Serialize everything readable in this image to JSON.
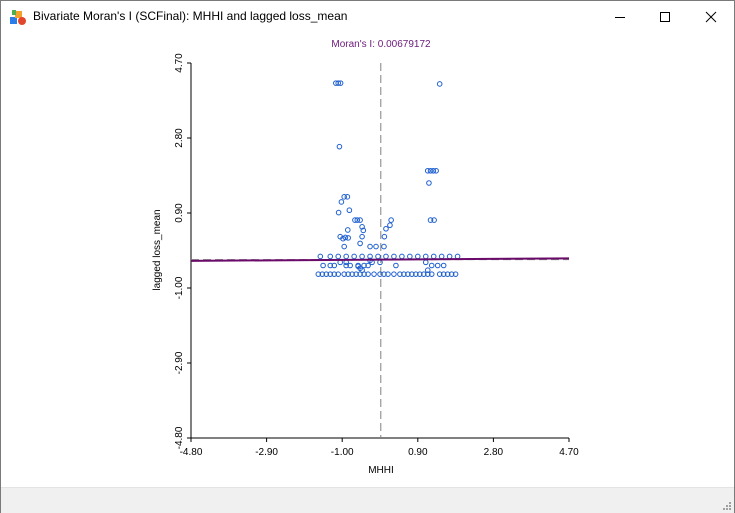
{
  "window": {
    "title": "Bivariate Moran's I (SCFinal): MHHI and lagged loss_mean",
    "icon": "geoda-app-icon",
    "controls": [
      "minimize-icon",
      "maximize-icon",
      "close-icon"
    ]
  },
  "chart_data": {
    "type": "scatter",
    "title": "Moran's I: 0.00679172",
    "xlabel": "MHHI",
    "ylabel": "lagged loss_mean",
    "xlim": [
      -4.8,
      4.7
    ],
    "ylim": [
      -4.8,
      4.7
    ],
    "xticks": [
      "-4.80",
      "-2.90",
      "-1.00",
      "0.90",
      "2.80",
      "4.70"
    ],
    "yticks": [
      "-4.80",
      "-2.90",
      "-1.00",
      "0.90",
      "2.80",
      "4.70"
    ],
    "grid": false,
    "colors": {
      "points": "#1e5fd0",
      "regression": "#6a0a6a",
      "axis_ref": "#808080",
      "title": "#6a1a7a"
    },
    "regression": {
      "slope": 0.00679172,
      "intercept": -0.28
    },
    "reference_lines": {
      "x": -0.03,
      "y": -0.28
    },
    "points": [
      [
        -1.16,
        4.19
      ],
      [
        -1.1,
        4.19
      ],
      [
        -1.04,
        4.19
      ],
      [
        1.45,
        4.17
      ],
      [
        -1.07,
        2.58
      ],
      [
        1.15,
        1.97
      ],
      [
        1.22,
        1.97
      ],
      [
        1.29,
        1.97
      ],
      [
        1.36,
        1.97
      ],
      [
        1.18,
        1.66
      ],
      [
        -0.87,
        1.31
      ],
      [
        -0.95,
        1.31
      ],
      [
        -1.02,
        1.18
      ],
      [
        -0.82,
        0.97
      ],
      [
        -1.09,
        0.91
      ],
      [
        -0.68,
        0.72
      ],
      [
        -0.62,
        0.72
      ],
      [
        -0.55,
        0.72
      ],
      [
        0.23,
        0.72
      ],
      [
        1.22,
        0.72
      ],
      [
        1.31,
        0.72
      ],
      [
        0.2,
        0.59
      ],
      [
        -0.5,
        0.55
      ],
      [
        -0.47,
        0.46
      ],
      [
        -0.86,
        0.47
      ],
      [
        0.1,
        0.5
      ],
      [
        -1.05,
        0.3
      ],
      [
        -0.98,
        0.25
      ],
      [
        -0.92,
        0.28
      ],
      [
        -0.85,
        0.27
      ],
      [
        -0.5,
        0.3
      ],
      [
        0.06,
        0.3
      ],
      [
        -0.95,
        0.05
      ],
      [
        -0.55,
        0.13
      ],
      [
        -0.3,
        0.05
      ],
      [
        -0.15,
        0.05
      ],
      [
        0.05,
        0.05
      ],
      [
        -1.55,
        -0.2
      ],
      [
        -1.3,
        -0.2
      ],
      [
        -1.1,
        -0.2
      ],
      [
        -0.9,
        -0.2
      ],
      [
        -0.7,
        -0.2
      ],
      [
        -0.5,
        -0.2
      ],
      [
        -0.3,
        -0.2
      ],
      [
        -0.1,
        -0.2
      ],
      [
        0.1,
        -0.2
      ],
      [
        0.3,
        -0.2
      ],
      [
        0.5,
        -0.2
      ],
      [
        0.7,
        -0.2
      ],
      [
        0.9,
        -0.2
      ],
      [
        1.1,
        -0.2
      ],
      [
        1.3,
        -0.2
      ],
      [
        1.5,
        -0.2
      ],
      [
        1.7,
        -0.2
      ],
      [
        1.9,
        -0.2
      ],
      [
        -1.48,
        -0.43
      ],
      [
        -1.3,
        -0.43
      ],
      [
        -1.2,
        -0.43
      ],
      [
        -0.9,
        -0.43
      ],
      [
        -0.8,
        -0.43
      ],
      [
        -0.6,
        -0.43
      ],
      [
        -0.45,
        -0.43
      ],
      [
        -0.35,
        -0.43
      ],
      [
        0.35,
        -0.43
      ],
      [
        1.25,
        -0.43
      ],
      [
        1.4,
        -0.43
      ],
      [
        1.55,
        -0.43
      ],
      [
        -0.6,
        -0.45
      ],
      [
        -0.55,
        -0.5
      ],
      [
        -0.5,
        -0.55
      ],
      [
        -1.6,
        -0.65
      ],
      [
        -1.5,
        -0.65
      ],
      [
        -1.4,
        -0.65
      ],
      [
        -1.3,
        -0.65
      ],
      [
        -1.2,
        -0.65
      ],
      [
        -1.1,
        -0.65
      ],
      [
        -0.95,
        -0.65
      ],
      [
        -0.85,
        -0.65
      ],
      [
        -0.75,
        -0.65
      ],
      [
        -0.65,
        -0.65
      ],
      [
        -0.55,
        -0.65
      ],
      [
        -0.45,
        -0.65
      ],
      [
        -0.35,
        -0.65
      ],
      [
        -0.2,
        -0.65
      ],
      [
        -0.05,
        -0.65
      ],
      [
        0.05,
        -0.65
      ],
      [
        0.15,
        -0.65
      ],
      [
        0.3,
        -0.65
      ],
      [
        0.45,
        -0.65
      ],
      [
        0.55,
        -0.65
      ],
      [
        0.65,
        -0.65
      ],
      [
        0.75,
        -0.65
      ],
      [
        0.85,
        -0.65
      ],
      [
        0.95,
        -0.65
      ],
      [
        1.05,
        -0.65
      ],
      [
        1.15,
        -0.65
      ],
      [
        1.25,
        -0.65
      ],
      [
        1.45,
        -0.65
      ],
      [
        1.55,
        -0.65
      ],
      [
        1.65,
        -0.65
      ],
      [
        1.75,
        -0.65
      ],
      [
        1.85,
        -0.65
      ],
      [
        -0.05,
        -0.35
      ],
      [
        -0.25,
        -0.35
      ],
      [
        1.15,
        -0.55
      ],
      [
        -1.05,
        -0.35
      ],
      [
        -0.9,
        -0.35
      ],
      [
        -0.3,
        -0.3
      ],
      [
        1.1,
        -0.35
      ]
    ]
  }
}
